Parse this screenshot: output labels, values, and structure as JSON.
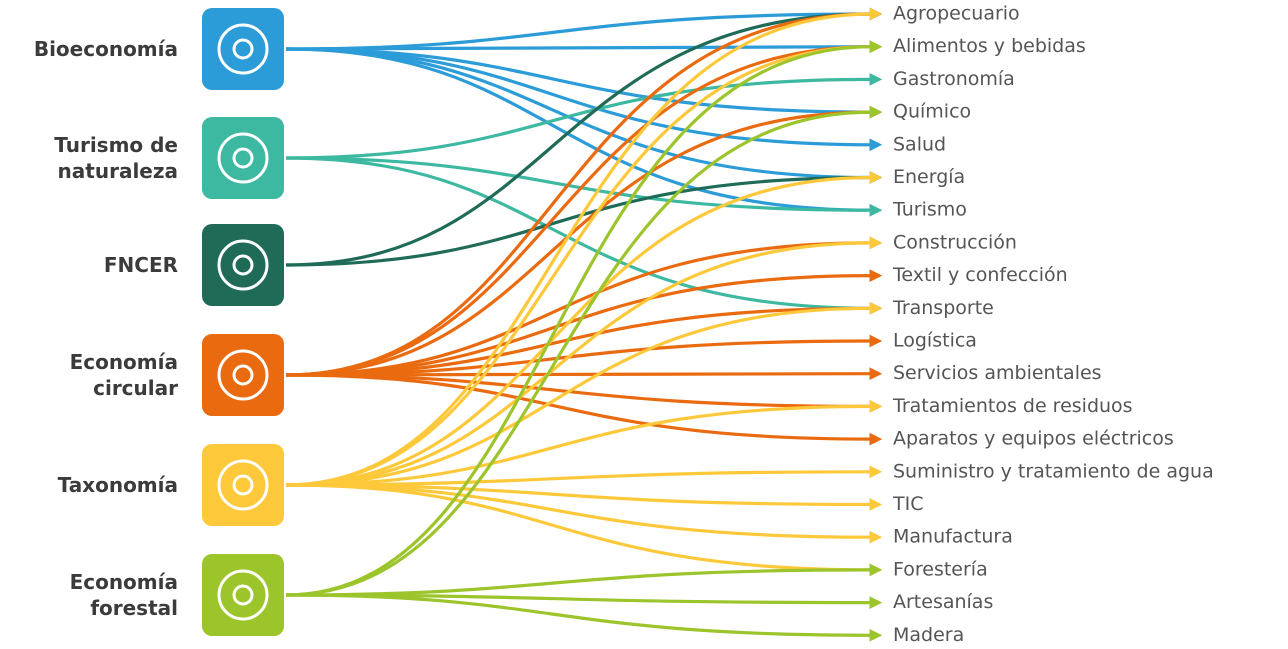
{
  "sources": [
    {
      "label": [
        "Bioeconomía"
      ],
      "color": "#2b9cd8"
    },
    {
      "label": [
        "Turismo de",
        "naturaleza"
      ],
      "color": "#3db8a1"
    },
    {
      "label": [
        "FNCER"
      ],
      "color": "#1f6b57"
    },
    {
      "label": [
        "Economía",
        "circular"
      ],
      "color": "#ea6a10"
    },
    {
      "label": [
        "Taxonomía"
      ],
      "color": "#fdc83a"
    },
    {
      "label": [
        "Economía",
        "forestal"
      ],
      "color": "#9cc42b"
    }
  ],
  "targets": [
    "Agropecuario",
    "Alimentos y bebidas",
    "Gastronomía",
    "Químico",
    "Salud",
    "Energía",
    "Turismo",
    "Construcción",
    "Textil y confección",
    "Transporte",
    "Logística",
    "Servicios ambientales",
    "Tratamientos de residuos",
    "Aparatos y equipos eléctricos",
    "Suministro y tratamiento de agua",
    "TIC",
    "Manufactura",
    "Forestería",
    "Artesanías",
    "Madera"
  ],
  "links": [
    [
      0,
      0
    ],
    [
      0,
      1
    ],
    [
      0,
      3
    ],
    [
      0,
      4
    ],
    [
      0,
      5
    ],
    [
      0,
      6
    ],
    [
      1,
      2
    ],
    [
      1,
      6
    ],
    [
      1,
      9
    ],
    [
      2,
      0
    ],
    [
      2,
      5
    ],
    [
      3,
      0
    ],
    [
      3,
      1
    ],
    [
      3,
      3
    ],
    [
      3,
      7
    ],
    [
      3,
      8
    ],
    [
      3,
      9
    ],
    [
      3,
      10
    ],
    [
      3,
      11
    ],
    [
      3,
      12
    ],
    [
      3,
      13
    ],
    [
      4,
      0
    ],
    [
      4,
      1
    ],
    [
      4,
      5
    ],
    [
      4,
      7
    ],
    [
      4,
      9
    ],
    [
      4,
      12
    ],
    [
      4,
      14
    ],
    [
      4,
      15
    ],
    [
      4,
      16
    ],
    [
      4,
      17
    ],
    [
      5,
      1
    ],
    [
      5,
      3
    ],
    [
      5,
      17
    ],
    [
      5,
      18
    ],
    [
      5,
      19
    ]
  ]
}
